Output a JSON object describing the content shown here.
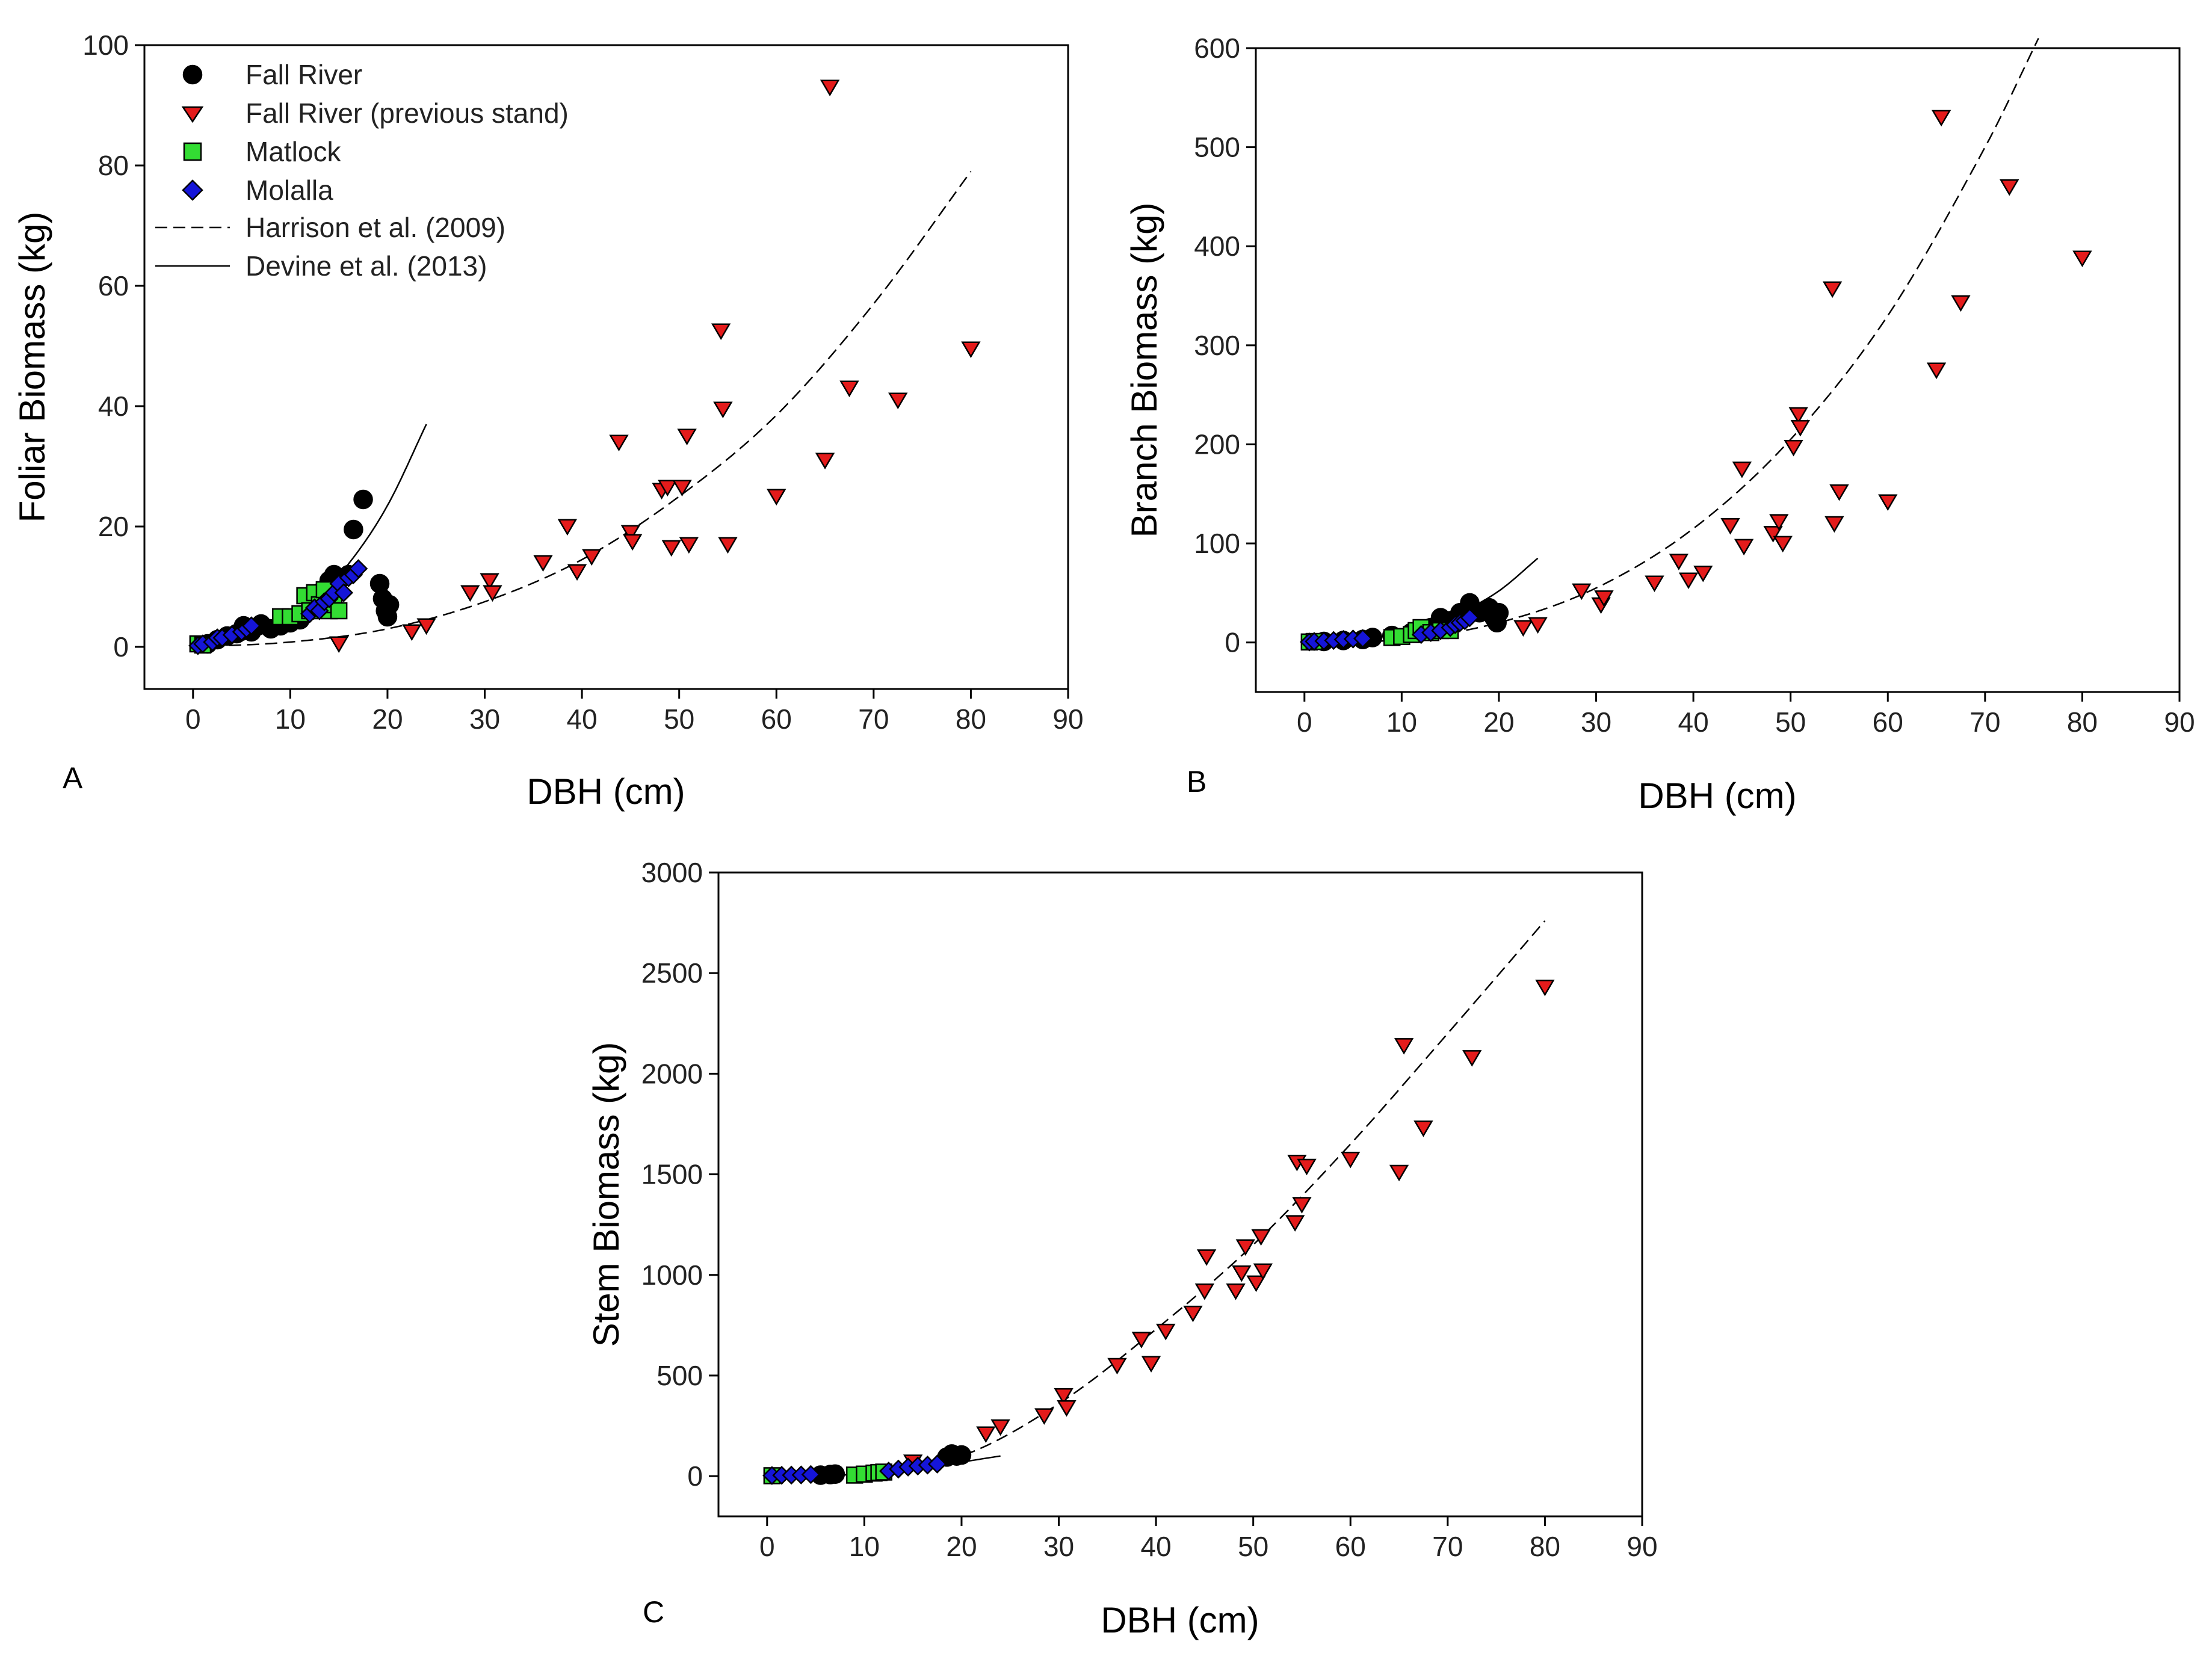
{
  "colors": {
    "fall_river": "#000000",
    "fall_river_previous": "#e41b1b",
    "matlock": "#33dd33",
    "molalla": "#1515d8"
  },
  "legend": {
    "items": [
      {
        "label": "Fall River",
        "symbol": "circle",
        "color": "#000000"
      },
      {
        "label": "Fall River (previous stand)",
        "symbol": "triangle-down",
        "color": "#e41b1b"
      },
      {
        "label": "Matlock",
        "symbol": "square",
        "color": "#33dd33"
      },
      {
        "label": "Molalla",
        "symbol": "diamond",
        "color": "#1515d8"
      },
      {
        "label": "Harrison et al. (2009)",
        "symbol": "dashed-line",
        "color": "#000000"
      },
      {
        "label": "Devine et al. (2013)",
        "symbol": "solid-line",
        "color": "#000000"
      }
    ]
  },
  "chart_data": [
    {
      "panel_label": "A",
      "type": "scatter",
      "xlabel": "DBH (cm)",
      "ylabel": "Foliar Biomass (kg)",
      "xlim": [
        -5,
        90
      ],
      "ylim": [
        -7,
        100
      ],
      "xticks": [
        0,
        10,
        20,
        30,
        40,
        50,
        60,
        70,
        80,
        90
      ],
      "yticks": [
        0,
        20,
        40,
        60,
        80,
        100
      ],
      "series": [
        {
          "name": "Fall River",
          "symbol": "circle",
          "color": "#000000",
          "x": [
            1.5,
            2.5,
            3.5,
            4.5,
            5.2,
            6,
            7,
            8,
            9,
            10,
            11,
            12,
            13,
            14,
            14.5,
            15,
            16,
            16.5,
            17.5,
            19.2,
            19.5,
            19.8,
            20,
            20.2
          ],
          "y": [
            0.5,
            1.2,
            1.8,
            2.2,
            3.5,
            2.5,
            3.8,
            3,
            3.5,
            4,
            4.5,
            6,
            9,
            11,
            12,
            11,
            12,
            19.5,
            24.5,
            10.5,
            8,
            6,
            5,
            7
          ]
        },
        {
          "name": "Fall River (previous stand)",
          "symbol": "triangle-down",
          "color": "#e41b1b",
          "x": [
            15,
            22.5,
            24,
            28.5,
            30.5,
            30.8,
            36,
            38.5,
            39.5,
            41,
            43.8,
            45,
            45.2,
            48.2,
            48.8,
            49.2,
            50.3,
            50.8,
            51,
            54.3,
            54.5,
            55,
            60,
            65,
            65.5,
            67.5,
            72.5,
            80
          ],
          "y": [
            0.5,
            2.5,
            3.5,
            9,
            11,
            9,
            14,
            20,
            12.5,
            15,
            34,
            19,
            17.5,
            26,
            26.5,
            16.5,
            26.5,
            35,
            17,
            52.5,
            39.5,
            17,
            25,
            31,
            93,
            43,
            41,
            49.5
          ]
        },
        {
          "name": "Matlock",
          "symbol": "square",
          "color": "#33dd33",
          "x": [
            0.5,
            1,
            9,
            10,
            11,
            11.5,
            12,
            12.5,
            13,
            13.5,
            14,
            14.5,
            15
          ],
          "y": [
            0.5,
            0.3,
            5,
            5,
            5.5,
            8.5,
            6,
            9,
            7,
            9.5,
            6,
            7,
            6
          ]
        },
        {
          "name": "Molalla",
          "symbol": "diamond",
          "color": "#1515d8",
          "x": [
            0.5,
            1,
            2,
            2.5,
            3,
            4,
            5,
            5.5,
            6,
            12,
            12.5,
            13,
            13.5,
            14,
            14.5,
            15,
            15.5,
            16,
            16.5,
            17
          ],
          "y": [
            0.2,
            0.5,
            0.8,
            1.5,
            1.5,
            2,
            2.5,
            3,
            3.5,
            5.5,
            6.5,
            6,
            7.5,
            8,
            9,
            10.5,
            9,
            11.5,
            12,
            13
          ]
        }
      ],
      "curves": [
        {
          "name": "Harrison et al. (2009)",
          "style": "dashed",
          "x_range": [
            0,
            80
          ],
          "x": [
            0,
            10,
            20,
            30,
            40,
            50,
            60,
            70,
            80
          ],
          "y": [
            0,
            0.8,
            3,
            7.5,
            14.5,
            25,
            38.5,
            57,
            79
          ]
        },
        {
          "name": "Devine et al. (2013)",
          "style": "solid",
          "x_range": [
            0,
            24
          ],
          "x": [
            0,
            4,
            8,
            12,
            16,
            20,
            24
          ],
          "y": [
            0,
            0.7,
            2.8,
            7,
            13.8,
            23.5,
            37
          ]
        }
      ]
    },
    {
      "panel_label": "B",
      "type": "scatter",
      "xlabel": "DBH (cm)",
      "ylabel": "Branch Biomass (kg)",
      "xlim": [
        -5,
        90
      ],
      "ylim": [
        -50,
        600
      ],
      "xticks": [
        0,
        10,
        20,
        30,
        40,
        50,
        60,
        70,
        80,
        90
      ],
      "yticks": [
        0,
        100,
        200,
        300,
        400,
        500,
        600
      ],
      "series": [
        {
          "name": "Fall River",
          "symbol": "circle",
          "color": "#000000",
          "x": [
            2,
            4,
            6,
            7,
            9,
            11,
            13,
            14,
            15,
            16,
            16.5,
            17,
            18,
            19,
            19.5,
            19.8,
            20
          ],
          "y": [
            1,
            2,
            3,
            5,
            7,
            10,
            15,
            25,
            22,
            30,
            28,
            40,
            30,
            35,
            25,
            20,
            30
          ]
        },
        {
          "name": "Fall River (previous stand)",
          "symbol": "triangle-down",
          "color": "#e41b1b",
          "x": [
            22.5,
            24,
            28.5,
            30.5,
            30.8,
            36,
            38.5,
            39.5,
            41,
            43.8,
            45,
            45.2,
            48.2,
            48.8,
            49.2,
            50.3,
            50.8,
            51,
            54.3,
            54.5,
            55,
            60,
            65,
            65.5,
            67.5,
            72.5,
            80
          ],
          "y": [
            15,
            18,
            52,
            38,
            45,
            60,
            82,
            63,
            70,
            118,
            175,
            97,
            110,
            122,
            100,
            197,
            230,
            217,
            357,
            120,
            152,
            142,
            275,
            530,
            343,
            460,
            388
          ]
        },
        {
          "name": "Matlock",
          "symbol": "square",
          "color": "#33dd33",
          "x": [
            0.5,
            1,
            9,
            10,
            11,
            11.5,
            12,
            13,
            14,
            15
          ],
          "y": [
            0.5,
            1,
            5,
            6,
            8,
            12,
            15,
            10,
            12,
            12
          ]
        },
        {
          "name": "Molalla",
          "symbol": "diamond",
          "color": "#1515d8",
          "x": [
            0.5,
            1,
            2,
            3,
            4,
            5,
            6,
            12,
            13,
            14,
            15,
            15.5,
            16,
            16.5,
            17
          ],
          "y": [
            0.5,
            1,
            1.5,
            2,
            3,
            3.5,
            4,
            8,
            10,
            12,
            15,
            18,
            20,
            22,
            25
          ]
        }
      ],
      "curves": [
        {
          "name": "Harrison et al. (2009)",
          "style": "dashed",
          "x_range": [
            0,
            75.5
          ],
          "x": [
            0,
            10,
            20,
            30,
            40,
            50,
            60,
            70,
            75.5
          ],
          "y": [
            0,
            3,
            20,
            55,
            115,
            205,
            330,
            500,
            610
          ]
        },
        {
          "name": "Devine et al. (2013)",
          "style": "solid",
          "x_range": [
            0,
            24
          ],
          "x": [
            0,
            4,
            8,
            12,
            16,
            20,
            24
          ],
          "y": [
            0,
            1.5,
            6,
            15,
            30,
            52,
            85
          ]
        }
      ]
    },
    {
      "panel_label": "C",
      "type": "scatter",
      "xlabel": "DBH (cm)",
      "ylabel": "Stem Biomass (kg)",
      "xlim": [
        -5,
        90
      ],
      "ylim": [
        -200,
        3000
      ],
      "xticks": [
        0,
        10,
        20,
        30,
        40,
        50,
        60,
        70,
        80,
        90
      ],
      "yticks": [
        0,
        500,
        1000,
        1500,
        2000,
        2500,
        3000
      ],
      "series": [
        {
          "name": "Fall River",
          "symbol": "circle",
          "color": "#000000",
          "x": [
            5.5,
            6.5,
            7,
            18.5,
            19,
            19.5,
            20
          ],
          "y": [
            5,
            8,
            10,
            95,
            110,
            100,
            105
          ]
        },
        {
          "name": "Fall River (previous stand)",
          "symbol": "triangle-down",
          "color": "#e41b1b",
          "x": [
            15,
            22.5,
            24,
            28.5,
            30.5,
            30.8,
            36,
            38.5,
            39.5,
            41,
            43.8,
            45,
            45.2,
            48.2,
            48.8,
            49.2,
            50.3,
            50.8,
            51,
            54.3,
            54.5,
            55,
            55.5,
            60,
            65,
            65.5,
            67.5,
            72.5,
            80
          ],
          "y": [
            70,
            210,
            245,
            300,
            400,
            340,
            550,
            680,
            560,
            720,
            810,
            920,
            1090,
            920,
            1010,
            1140,
            960,
            1190,
            1020,
            1260,
            1560,
            1350,
            1540,
            1575,
            1510,
            2140,
            1730,
            2080,
            2430
          ]
        },
        {
          "name": "Matlock",
          "symbol": "square",
          "color": "#33dd33",
          "x": [
            0.5,
            9,
            10,
            11,
            11.5,
            12
          ],
          "y": [
            2,
            5,
            10,
            15,
            18,
            20
          ]
        },
        {
          "name": "Molalla",
          "symbol": "diamond",
          "color": "#1515d8",
          "x": [
            0.5,
            1.5,
            2.5,
            3.5,
            4.5,
            12.5,
            13.5,
            14.5,
            15.5,
            16.5,
            17.5
          ],
          "y": [
            3,
            4,
            5,
            6,
            8,
            25,
            35,
            45,
            50,
            55,
            60
          ]
        }
      ],
      "curves": [
        {
          "name": "Harrison et al. (2009)",
          "style": "dashed",
          "x_range": [
            0,
            80
          ],
          "x": [
            0,
            10,
            20,
            30,
            40,
            50,
            60,
            70,
            80
          ],
          "y": [
            0,
            15,
            100,
            360,
            730,
            1150,
            1650,
            2200,
            2760
          ]
        },
        {
          "name": "Devine et al. (2013)",
          "style": "solid",
          "x_range": [
            0,
            24
          ],
          "x": [
            0,
            4,
            8,
            12,
            16,
            20,
            24
          ],
          "y": [
            0,
            1,
            6,
            20,
            42,
            70,
            100
          ]
        }
      ]
    }
  ]
}
